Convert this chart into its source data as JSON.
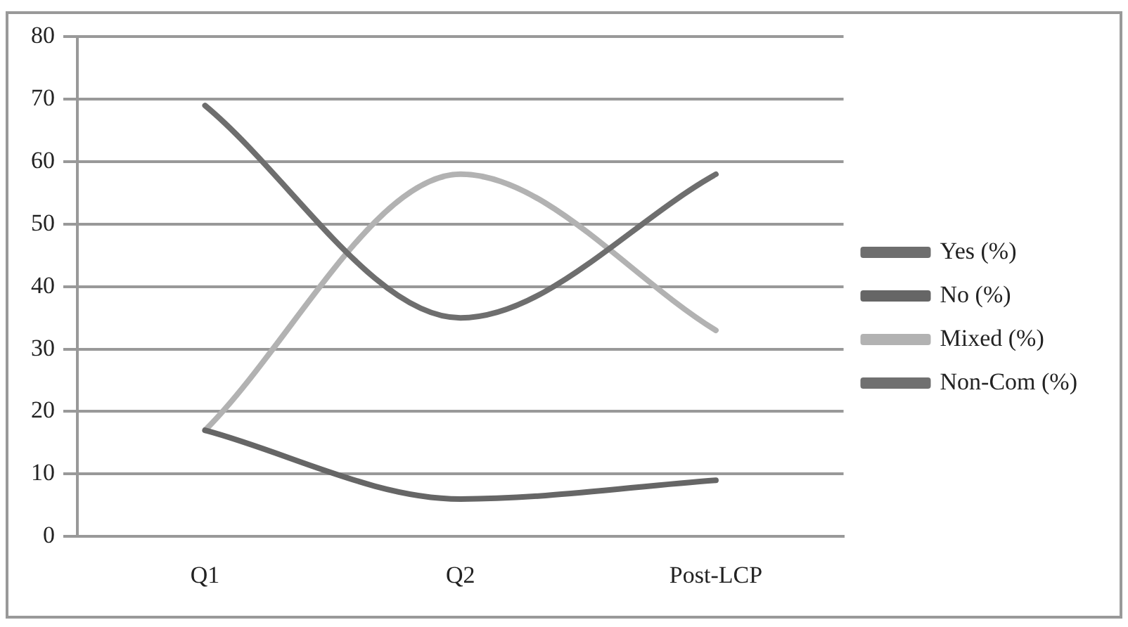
{
  "chart_data": {
    "type": "line",
    "categories": [
      "Q1",
      "Q2",
      "Post-LCP"
    ],
    "series": [
      {
        "name": "Yes (%)",
        "color": "#6e6e6e",
        "values": [
          69,
          35,
          58
        ]
      },
      {
        "name": "No (%)",
        "color": "#666666",
        "values": [
          17,
          6,
          9
        ]
      },
      {
        "name": "Mixed (%)",
        "color": "#b2b2b2",
        "values": [
          17,
          58,
          33
        ]
      },
      {
        "name": "Non-Com (%)",
        "color": "#707070",
        "values": [
          null,
          null,
          null
        ]
      }
    ],
    "ylim": [
      0,
      80
    ],
    "yticks": [
      0,
      10,
      20,
      30,
      40,
      50,
      60,
      70,
      80
    ],
    "grid": "y",
    "legend": "right",
    "marker": "none",
    "line_style": "solid"
  }
}
